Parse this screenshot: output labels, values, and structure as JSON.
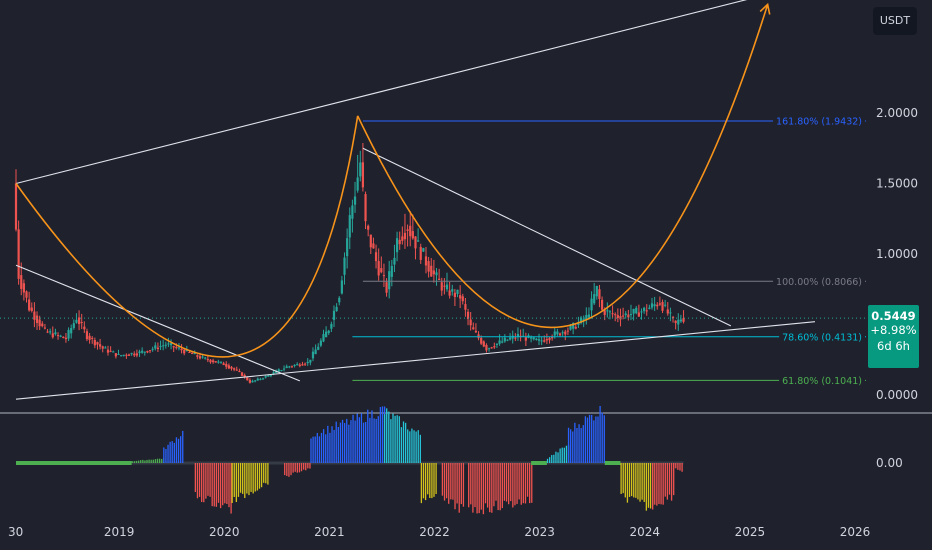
{
  "header": {
    "currency": "USDT"
  },
  "price_badge": {
    "price": "0.5449",
    "change": "+8.98%",
    "timer": "6d 6h"
  },
  "colors": {
    "background": "#1f222d",
    "up": "#26a69a",
    "down": "#ef5350",
    "trendline": "#e0e3eb",
    "cup_curve": "#f7931a",
    "fib_161": "#2962ff",
    "fib_100": "#787b86",
    "fib_786": "#00bcd4",
    "fib_618": "#4caf50",
    "hist_blue": "#2962ff",
    "hist_teal": "#26c6da",
    "hist_red": "#ef5350",
    "hist_yellow": "#d4c31a",
    "hist_green": "#4caf50"
  },
  "chart_data": [
    {
      "type": "candlestick",
      "ylim": [
        -0.15,
        2.85
      ],
      "y_ticks": [
        "2.0000",
        "1.5000",
        "1.0000",
        "0.0000"
      ],
      "y_tick_values": [
        2.0,
        1.5,
        1.0,
        0.0
      ],
      "x_ticks": [
        "30",
        "2019",
        "2020",
        "2021",
        "2022",
        "2023",
        "2024",
        "2025",
        "2026"
      ],
      "x_tick_values": [
        2018.0,
        2019.0,
        2020.0,
        2021.0,
        2022.0,
        2023.0,
        2024.0,
        2025.0,
        2026.0
      ],
      "current_price": 0.5449,
      "price_path": [
        [
          2018.0,
          1.5
        ],
        [
          2018.05,
          0.85
        ],
        [
          2018.15,
          0.62
        ],
        [
          2018.3,
          0.45
        ],
        [
          2018.5,
          0.4
        ],
        [
          2018.6,
          0.55
        ],
        [
          2018.7,
          0.42
        ],
        [
          2018.85,
          0.33
        ],
        [
          2019.0,
          0.28
        ],
        [
          2019.2,
          0.3
        ],
        [
          2019.45,
          0.36
        ],
        [
          2019.6,
          0.32
        ],
        [
          2019.8,
          0.26
        ],
        [
          2020.0,
          0.22
        ],
        [
          2020.15,
          0.16
        ],
        [
          2020.25,
          0.09
        ],
        [
          2020.4,
          0.13
        ],
        [
          2020.6,
          0.2
        ],
        [
          2020.8,
          0.23
        ],
        [
          2020.9,
          0.35
        ],
        [
          2021.0,
          0.47
        ],
        [
          2021.1,
          0.72
        ],
        [
          2021.2,
          1.25
        ],
        [
          2021.3,
          1.65
        ],
        [
          2021.35,
          1.2
        ],
        [
          2021.45,
          0.95
        ],
        [
          2021.55,
          0.75
        ],
        [
          2021.65,
          1.1
        ],
        [
          2021.75,
          1.2
        ],
        [
          2021.85,
          1.05
        ],
        [
          2022.0,
          0.85
        ],
        [
          2022.1,
          0.75
        ],
        [
          2022.25,
          0.7
        ],
        [
          2022.35,
          0.48
        ],
        [
          2022.5,
          0.33
        ],
        [
          2022.65,
          0.38
        ],
        [
          2022.8,
          0.42
        ],
        [
          2023.0,
          0.38
        ],
        [
          2023.15,
          0.43
        ],
        [
          2023.3,
          0.47
        ],
        [
          2023.45,
          0.55
        ],
        [
          2023.55,
          0.75
        ],
        [
          2023.6,
          0.6
        ],
        [
          2023.75,
          0.56
        ],
        [
          2023.9,
          0.58
        ],
        [
          2024.0,
          0.6
        ],
        [
          2024.15,
          0.66
        ],
        [
          2024.3,
          0.5
        ],
        [
          2024.35,
          0.5449
        ]
      ],
      "fib_levels": [
        {
          "label": "161.80% (1.9432)",
          "value": 1.9432,
          "x_start": 2021.3,
          "color_key": "fib_161"
        },
        {
          "label": "100.00% (0.8066)",
          "value": 0.8066,
          "x_start": 2021.3,
          "color_key": "fib_100"
        },
        {
          "label": "78.60% (0.4131)",
          "value": 0.4131,
          "x_start": 2021.2,
          "color_key": "fib_786"
        },
        {
          "label": "61.80% (0.1041)",
          "value": 0.1041,
          "x_start": 2021.2,
          "color_key": "fib_618"
        }
      ],
      "trendlines": [
        {
          "from": [
            2018.0,
            1.5
          ],
          "to": [
            2025.3,
            2.87
          ]
        },
        {
          "from": [
            2018.0,
            -0.03
          ],
          "to": [
            2025.6,
            0.52
          ]
        },
        {
          "from": [
            2018.0,
            0.92
          ],
          "to": [
            2020.7,
            0.1
          ]
        },
        {
          "from": [
            2021.3,
            1.75
          ],
          "to": [
            2024.8,
            0.49
          ]
        }
      ],
      "cup_curves": [
        {
          "points": [
            [
              2018.0,
              1.5
            ],
            [
              2020.1,
              0.28
            ],
            [
              2021.25,
              1.98
            ]
          ]
        },
        {
          "points": [
            [
              2021.25,
              1.98
            ],
            [
              2023.3,
              0.5
            ],
            [
              2025.15,
              2.77
            ]
          ],
          "arrow": true
        }
      ]
    },
    {
      "type": "histogram",
      "ylim": [
        -0.5,
        0.5
      ],
      "y_ticks": [
        "0.00"
      ],
      "y_tick_values": [
        0.0
      ],
      "segments": [
        {
          "start": 2018.0,
          "end": 2019.1,
          "values": [
            0.0,
            0.0
          ],
          "color_key": "hist_green"
        },
        {
          "start": 2019.1,
          "end": 2019.4,
          "values": [
            0.02,
            0.05
          ],
          "color_key": "hist_green"
        },
        {
          "start": 2019.4,
          "end": 2019.6,
          "values": [
            0.15,
            0.35
          ],
          "color_key": "hist_blue"
        },
        {
          "start": 2019.7,
          "end": 2020.05,
          "values": [
            -0.35,
            -0.5
          ],
          "color_key": "hist_red"
        },
        {
          "start": 2020.05,
          "end": 2020.4,
          "values": [
            -0.42,
            -0.2
          ],
          "color_key": "hist_yellow"
        },
        {
          "start": 2020.55,
          "end": 2020.8,
          "values": [
            -0.15,
            -0.05
          ],
          "color_key": "hist_red"
        },
        {
          "start": 2020.8,
          "end": 2021.5,
          "values": [
            0.3,
            0.58
          ],
          "color_key": "hist_blue"
        },
        {
          "start": 2021.5,
          "end": 2021.85,
          "values": [
            0.55,
            0.3
          ],
          "color_key": "hist_teal"
        },
        {
          "start": 2021.85,
          "end": 2022.0,
          "values": [
            -0.45,
            -0.3
          ],
          "color_key": "hist_yellow"
        },
        {
          "start": 2022.05,
          "end": 2022.25,
          "values": [
            -0.4,
            -0.5
          ],
          "color_key": "hist_red"
        },
        {
          "start": 2022.3,
          "end": 2022.9,
          "values": [
            -0.52,
            -0.4
          ],
          "color_key": "hist_red"
        },
        {
          "start": 2022.9,
          "end": 2023.05,
          "values": [
            0.0,
            0.0
          ],
          "color_key": "hist_green"
        },
        {
          "start": 2023.05,
          "end": 2023.25,
          "values": [
            0.05,
            0.2
          ],
          "color_key": "hist_teal"
        },
        {
          "start": 2023.25,
          "end": 2023.6,
          "values": [
            0.35,
            0.6
          ],
          "color_key": "hist_blue"
        },
        {
          "start": 2023.6,
          "end": 2023.75,
          "values": [
            0.0,
            0.0
          ],
          "color_key": "hist_green"
        },
        {
          "start": 2023.75,
          "end": 2024.05,
          "values": [
            -0.35,
            -0.5
          ],
          "color_key": "hist_yellow"
        },
        {
          "start": 2024.05,
          "end": 2024.25,
          "values": [
            -0.45,
            -0.35
          ],
          "color_key": "hist_red"
        },
        {
          "start": 2024.25,
          "end": 2024.35,
          "values": [
            -0.05,
            -0.1
          ],
          "color_key": "hist_red"
        }
      ]
    }
  ]
}
